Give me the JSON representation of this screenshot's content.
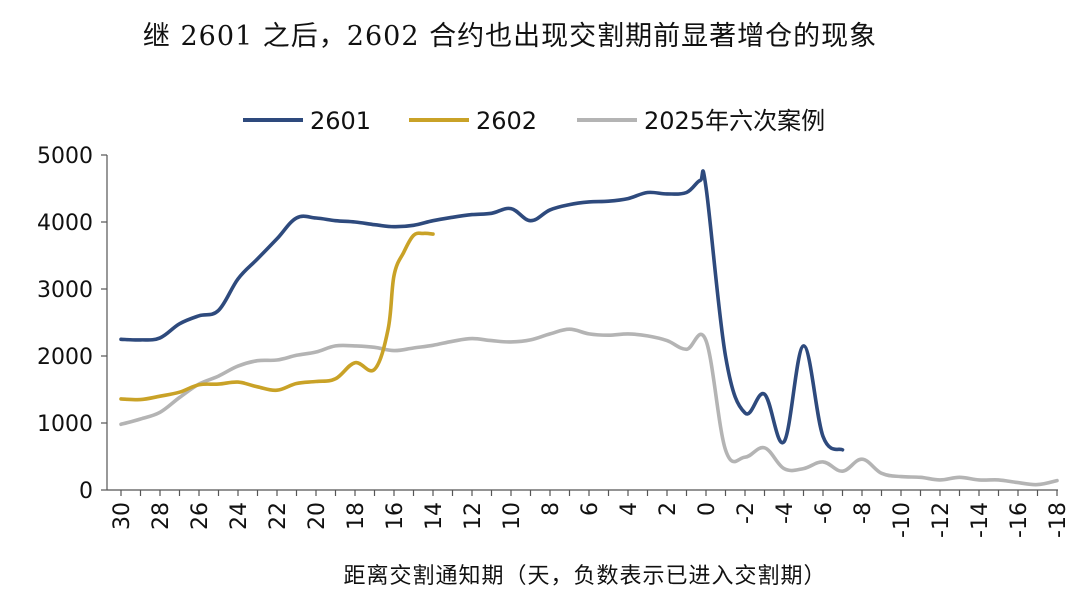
{
  "chart_data": {
    "type": "line",
    "title": "继 2601 之后，2602 合约也出现交割期前显著增仓的现象",
    "xlabel": "距离交割通知期（天，负数表示已进入交割期）",
    "ylabel": "",
    "ylim": [
      0,
      5000
    ],
    "yticks": [
      0,
      1000,
      2000,
      3000,
      4000,
      5000
    ],
    "xlim": [
      30,
      -18
    ],
    "xaxis_reversed": true,
    "xticks": [
      30,
      28,
      26,
      24,
      22,
      20,
      18,
      16,
      14,
      12,
      10,
      8,
      6,
      4,
      2,
      0,
      -2,
      -4,
      -6,
      -8,
      -10,
      -12,
      -14,
      -16,
      -18
    ],
    "legend_position": "top",
    "grid": false,
    "series": [
      {
        "name": "2601",
        "color": "#2e4a7d",
        "x": [
          30,
          29,
          28,
          27,
          26,
          25,
          24,
          23,
          22,
          21,
          20,
          19,
          18,
          17,
          16,
          15,
          14,
          13,
          12,
          11,
          10,
          9,
          8,
          7,
          6,
          5,
          4,
          3,
          2,
          1,
          0.3,
          0,
          -1,
          -2,
          -3,
          -4,
          -5,
          -6,
          -7
        ],
        "y": [
          2250,
          2240,
          2270,
          2480,
          2600,
          2680,
          3150,
          3450,
          3750,
          4060,
          4060,
          4020,
          4000,
          3960,
          3930,
          3950,
          4020,
          4070,
          4110,
          4130,
          4200,
          4020,
          4180,
          4260,
          4300,
          4310,
          4350,
          4440,
          4420,
          4440,
          4620,
          4520,
          2000,
          1150,
          1430,
          720,
          2150,
          800,
          600
        ]
      },
      {
        "name": "2602",
        "color": "#c9a227",
        "x": [
          30,
          29,
          28,
          27,
          26,
          25,
          24,
          23,
          22,
          21,
          20,
          19,
          18,
          17,
          16.3,
          16,
          15.5,
          15,
          14.5,
          14
        ],
        "y": [
          1360,
          1350,
          1400,
          1460,
          1570,
          1580,
          1610,
          1540,
          1490,
          1590,
          1620,
          1660,
          1900,
          1800,
          2400,
          3200,
          3550,
          3800,
          3830,
          3820
        ]
      },
      {
        "name": "2025年六次案例",
        "color": "#b4b4b4",
        "x": [
          30,
          29,
          28,
          27,
          26,
          25,
          24,
          23,
          22,
          21,
          20,
          19,
          18,
          17,
          16,
          15,
          14,
          13,
          12,
          11,
          10,
          9,
          8,
          7,
          6,
          5,
          4,
          3,
          2,
          1,
          0,
          -1,
          -2,
          -3,
          -4,
          -5,
          -6,
          -7,
          -8,
          -9,
          -10,
          -11,
          -12,
          -13,
          -14,
          -15,
          -16,
          -17,
          -18
        ],
        "y": [
          980,
          1060,
          1160,
          1380,
          1580,
          1700,
          1850,
          1930,
          1940,
          2010,
          2060,
          2150,
          2150,
          2130,
          2080,
          2120,
          2160,
          2220,
          2260,
          2230,
          2210,
          2240,
          2330,
          2400,
          2330,
          2310,
          2330,
          2300,
          2230,
          2100,
          2230,
          600,
          490,
          630,
          320,
          320,
          420,
          280,
          460,
          250,
          200,
          190,
          150,
          190,
          150,
          150,
          110,
          80,
          140
        ]
      }
    ]
  }
}
